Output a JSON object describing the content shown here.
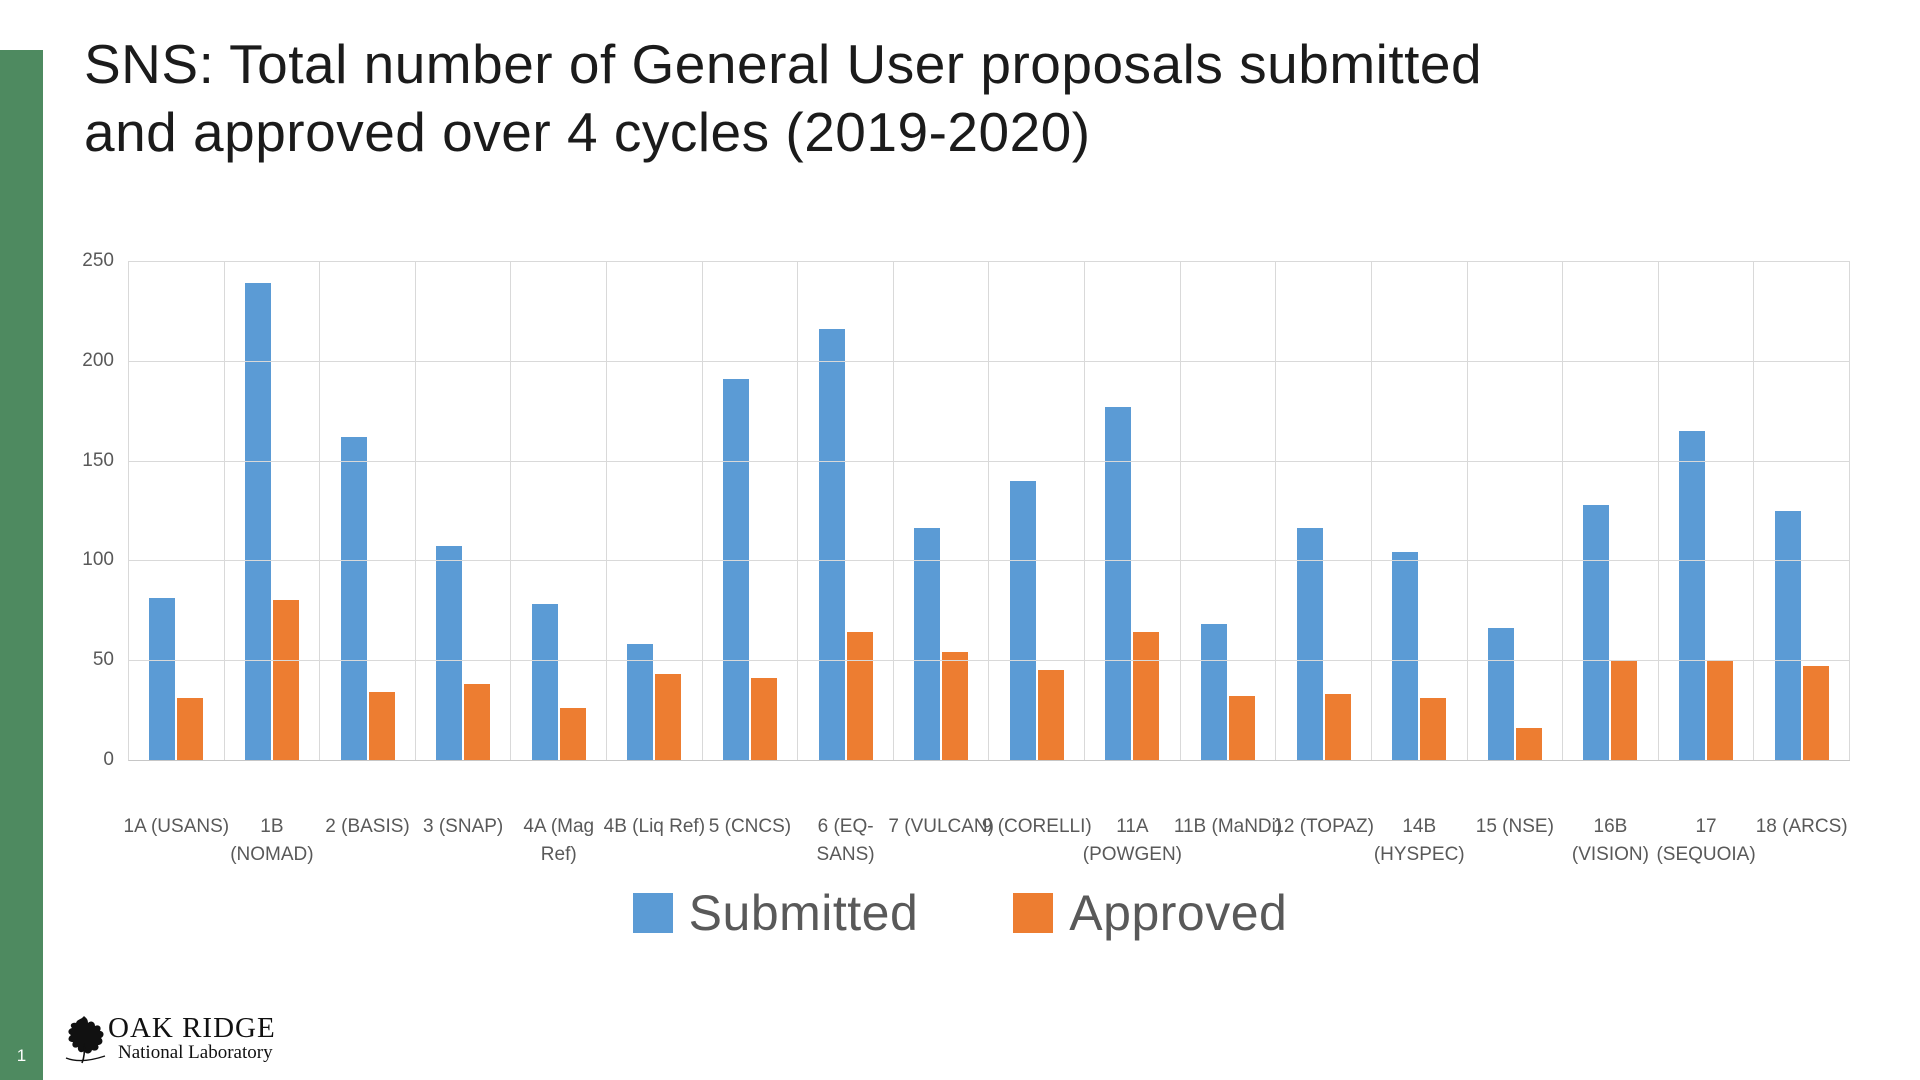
{
  "slide": {
    "title_lines": [
      "SNS: Total number of General User proposals submitted",
      "and approved over 4 cycles (2019-2020)"
    ],
    "page_number": "1",
    "logo": {
      "line1": "OAK RIDGE",
      "line2": "National Laboratory"
    }
  },
  "colors": {
    "accent_strip_green": "#4E8A60",
    "submitted_blue": "#5B9BD5",
    "approved_orange": "#ED7D31",
    "gridline_gray": "#D9D9D9",
    "axis_text_gray": "#595959"
  },
  "chart_data": {
    "type": "bar",
    "title": "",
    "xlabel": "",
    "ylabel": "",
    "ylim": [
      0,
      250
    ],
    "yticks": [
      0,
      50,
      100,
      150,
      200,
      250
    ],
    "grid": true,
    "legend_position": "bottom",
    "categories": [
      "1A (USANS)",
      "1B (NOMAD)",
      "2 (BASIS)",
      "3 (SNAP)",
      "4A (Mag Ref)",
      "4B (Liq Ref)",
      "5 (CNCS)",
      "6 (EQ-SANS)",
      "7 (VULCAN)",
      "9 (CORELLI)",
      "11A\n(POWGEN)",
      "11B (MaNDi)",
      "12 (TOPAZ)",
      "14B\n(HYSPEC)",
      "15 (NSE)",
      "16B (VISION)",
      "17\n(SEQUOIA)",
      "18 (ARCS)"
    ],
    "series": [
      {
        "name": "Submitted",
        "color": "#5B9BD5",
        "values": [
          81,
          239,
          162,
          107,
          78,
          58,
          191,
          216,
          116,
          140,
          177,
          68,
          116,
          104,
          66,
          128,
          165,
          125
        ]
      },
      {
        "name": "Approved",
        "color": "#ED7D31",
        "values": [
          31,
          80,
          34,
          38,
          26,
          43,
          41,
          64,
          54,
          45,
          64,
          32,
          33,
          31,
          16,
          50,
          50,
          47
        ]
      }
    ]
  }
}
